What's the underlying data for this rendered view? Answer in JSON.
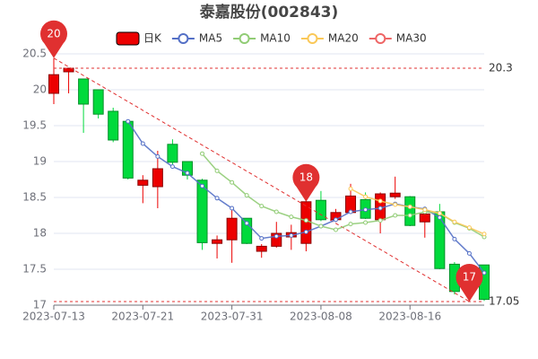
{
  "chart_data": {
    "type": "candlestick",
    "title": "泰嘉股份(002843)",
    "categories": [
      "2023-07-13",
      null,
      null,
      null,
      null,
      null,
      "2023-07-21",
      null,
      null,
      null,
      null,
      null,
      "2023-07-31",
      null,
      null,
      null,
      null,
      null,
      "2023-08-08",
      null,
      null,
      null,
      null,
      null,
      "2023-08-16",
      null,
      null,
      null,
      null,
      null
    ],
    "series": [
      {
        "name": "日K",
        "up_color": "#ec0000",
        "down_color": "#00da3c",
        "open": [
          19.95,
          20.25,
          20.15,
          20.0,
          19.7,
          19.56,
          18.67,
          18.65,
          19.24,
          19.0,
          18.74,
          17.86,
          17.91,
          18.21,
          17.75,
          17.82,
          17.95,
          17.86,
          18.46,
          18.19,
          18.29,
          18.47,
          18.19,
          18.51,
          18.51,
          18.16,
          18.3,
          17.57,
          17.35,
          17.56
        ],
        "close": [
          20.21,
          20.3,
          19.8,
          19.66,
          19.3,
          18.77,
          18.74,
          18.9,
          18.99,
          18.81,
          17.87,
          17.91,
          18.21,
          17.86,
          17.82,
          18.0,
          18.01,
          18.44,
          18.19,
          18.29,
          18.52,
          18.21,
          18.55,
          18.56,
          18.11,
          18.27,
          17.51,
          17.19,
          17.2,
          17.08
        ],
        "high": [
          20.44,
          20.3,
          20.15,
          20.0,
          19.75,
          19.56,
          18.81,
          19.15,
          19.31,
          19.0,
          18.76,
          17.97,
          18.35,
          18.21,
          17.85,
          18.16,
          18.12,
          18.45,
          18.59,
          18.34,
          18.69,
          18.57,
          18.57,
          18.79,
          18.52,
          18.3,
          18.41,
          17.6,
          17.4,
          17.56
        ],
        "low": [
          19.8,
          19.95,
          19.4,
          19.6,
          19.27,
          18.75,
          18.42,
          18.35,
          18.96,
          18.75,
          17.77,
          17.65,
          17.59,
          17.85,
          17.66,
          17.8,
          17.77,
          17.75,
          18.17,
          18.16,
          18.27,
          18.2,
          18.0,
          18.48,
          18.1,
          17.94,
          17.5,
          17.15,
          17.05,
          17.06
        ]
      }
    ],
    "moving_averages": [
      {
        "name": "MA5",
        "color": "#5470c6",
        "values": [
          null,
          null,
          null,
          null,
          null,
          19.56,
          19.25,
          19.07,
          18.93,
          18.84,
          18.66,
          18.49,
          18.35,
          18.14,
          17.93,
          17.96,
          17.97,
          18.02,
          18.1,
          18.19,
          18.3,
          18.33,
          18.35,
          18.41,
          18.37,
          18.34,
          18.22,
          17.92,
          17.72,
          17.45
        ]
      },
      {
        "name": "MA10",
        "color": "#91cc75",
        "values": [
          null,
          null,
          null,
          null,
          null,
          null,
          null,
          null,
          null,
          null,
          19.11,
          18.87,
          18.71,
          18.53,
          18.38,
          18.3,
          18.23,
          18.18,
          18.1,
          18.05,
          18.13,
          18.15,
          18.18,
          18.25,
          18.25,
          18.3,
          18.28,
          18.15,
          18.07,
          17.95
        ]
      },
      {
        "name": "MA20",
        "color": "#fac858",
        "values": [
          null,
          null,
          null,
          null,
          null,
          null,
          null,
          null,
          null,
          null,
          null,
          null,
          null,
          null,
          null,
          null,
          null,
          null,
          null,
          null,
          18.62,
          18.51,
          18.45,
          18.4,
          18.37,
          18.33,
          18.28,
          18.16,
          18.08,
          17.99
        ]
      },
      {
        "name": "MA30",
        "color": "#ee6666",
        "values": [
          null,
          null,
          null,
          null,
          null,
          null,
          null,
          null,
          null,
          null,
          null,
          null,
          null,
          null,
          null,
          null,
          null,
          null,
          null,
          null,
          null,
          null,
          null,
          null,
          null,
          null,
          null,
          null,
          null,
          null
        ]
      }
    ],
    "mark_points": {
      "color": "#e03030",
      "values": [
        20.44,
        null,
        null,
        null,
        null,
        null,
        null,
        null,
        null,
        null,
        null,
        null,
        null,
        null,
        null,
        null,
        null,
        18.44,
        null,
        null,
        null,
        null,
        null,
        null,
        null,
        null,
        null,
        null,
        17.05,
        null
      ],
      "value_labels": [
        "20",
        null,
        null,
        null,
        null,
        null,
        null,
        null,
        null,
        null,
        null,
        null,
        null,
        null,
        null,
        null,
        null,
        "18",
        null,
        null,
        null,
        null,
        null,
        null,
        null,
        null,
        null,
        null,
        "17",
        null
      ]
    },
    "mark_lines": [
      20.3,
      17.05
    ],
    "ylim": [
      17,
      20.5
    ],
    "yticks": [
      17,
      17.5,
      18,
      18.5,
      19,
      19.5,
      20,
      20.5
    ],
    "grid": true
  }
}
